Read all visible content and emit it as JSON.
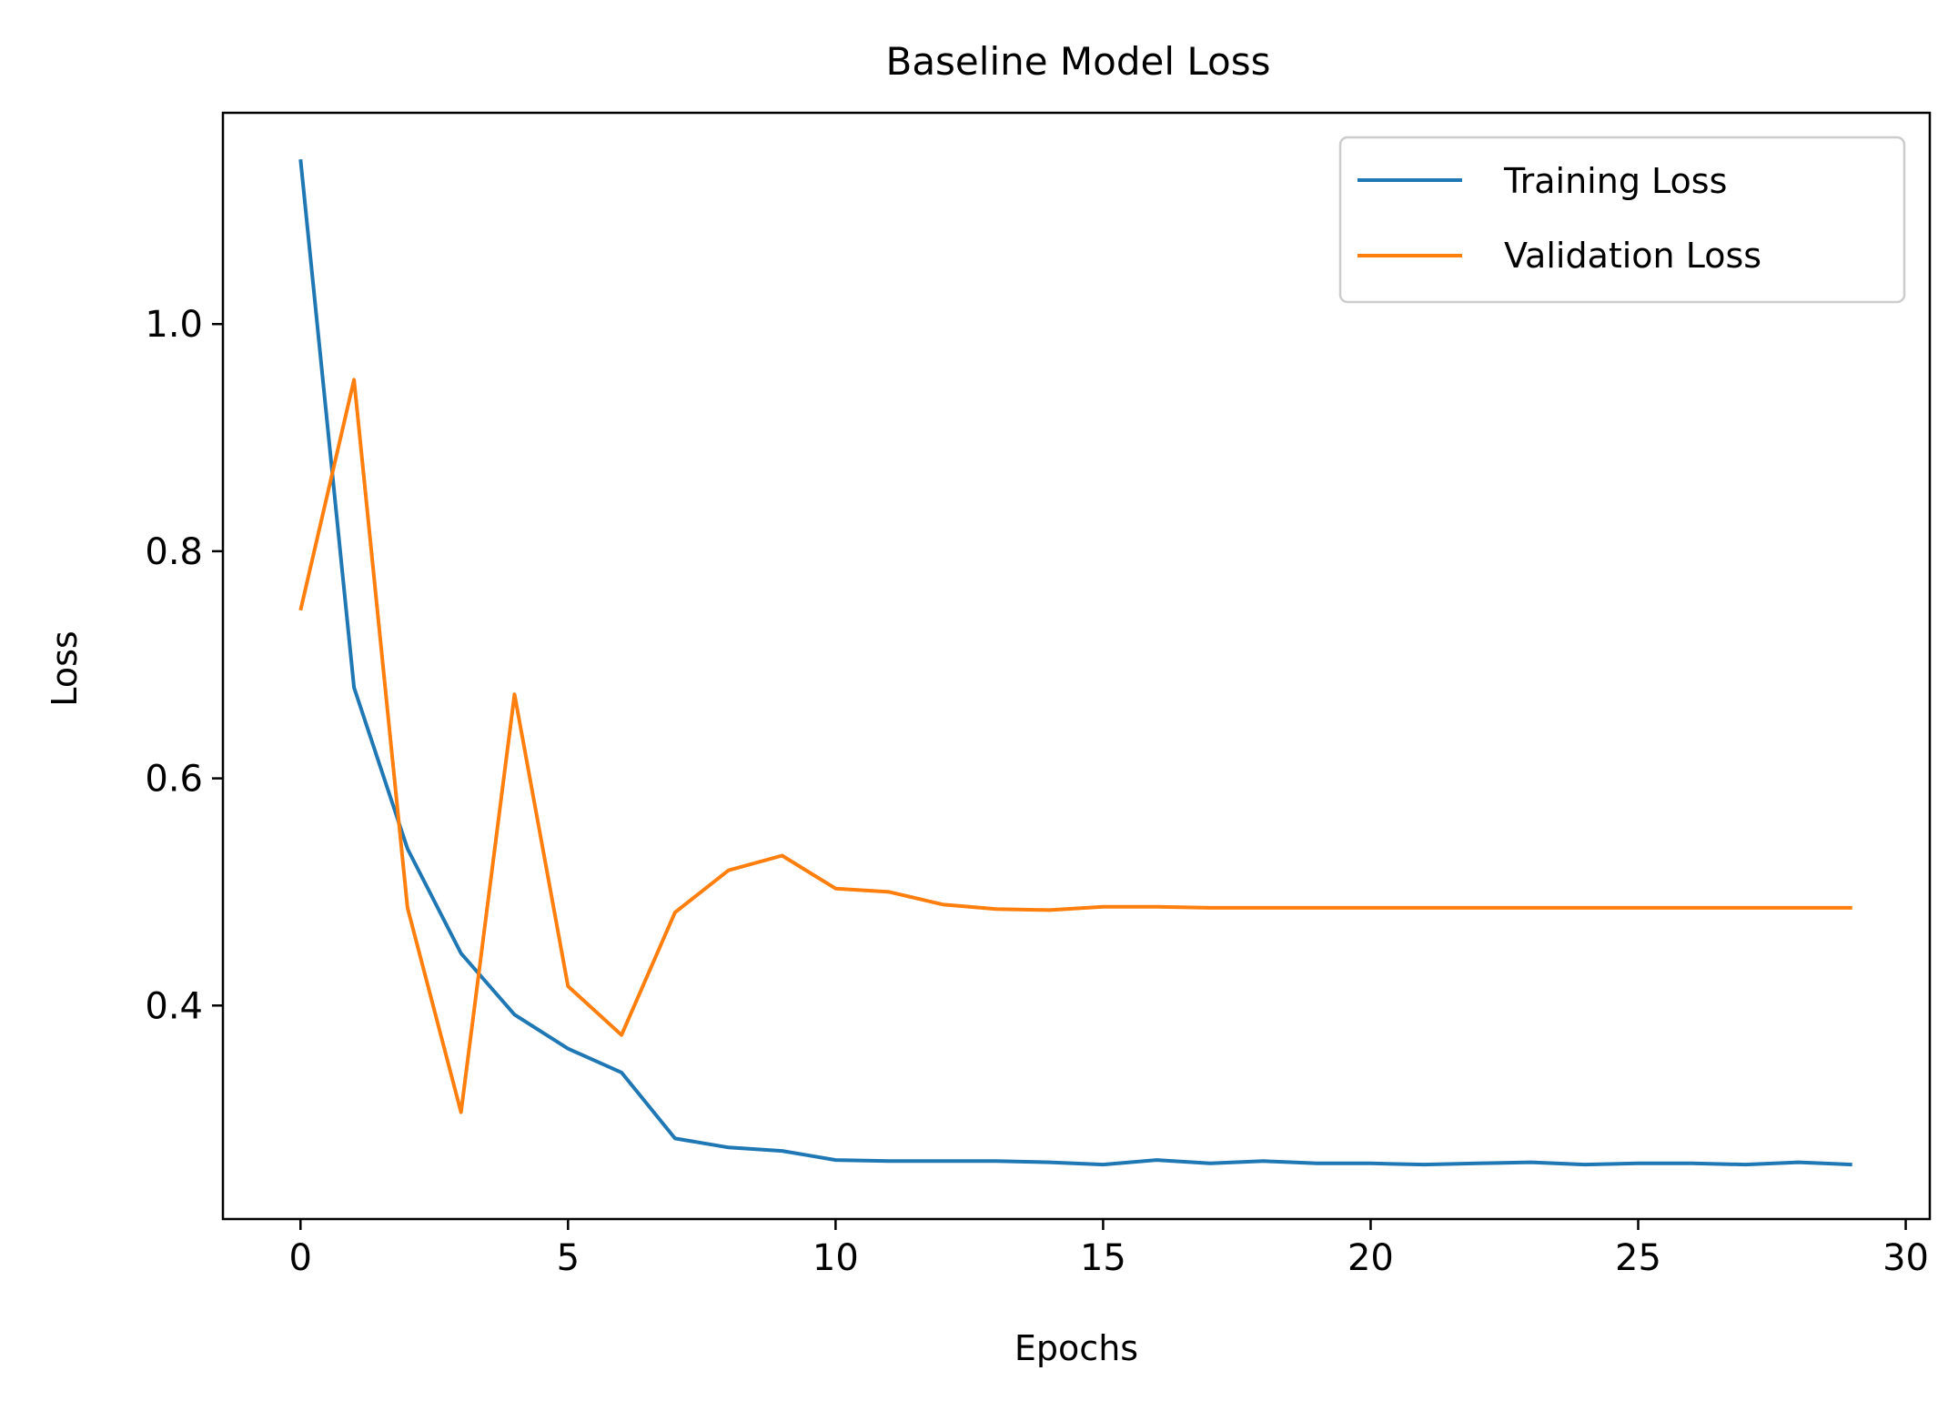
{
  "chart_data": {
    "type": "line",
    "title": "Baseline Model Loss",
    "xlabel": "Epochs",
    "ylabel": "Loss",
    "xlim": [
      -1.45,
      30.45
    ],
    "ylim": [
      0.212,
      1.186
    ],
    "xticks": [
      0,
      5,
      10,
      15,
      20,
      25,
      30
    ],
    "yticks": [
      0.4,
      0.6,
      0.8,
      1.0
    ],
    "xtick_labels": [
      "0",
      "5",
      "10",
      "15",
      "20",
      "25",
      "30"
    ],
    "ytick_labels": [
      "0.4",
      "0.6",
      "0.8",
      "1.0"
    ],
    "grid": false,
    "legend_position": "top-right",
    "x": [
      0,
      1,
      2,
      3,
      4,
      5,
      6,
      7,
      8,
      9,
      10,
      11,
      12,
      13,
      14,
      15,
      16,
      17,
      18,
      19,
      20,
      21,
      22,
      23,
      24,
      25,
      26,
      27,
      28,
      29
    ],
    "series": [
      {
        "name": "Training Loss",
        "color": "#1f77b4",
        "values": [
          1.145,
          0.68,
          0.538,
          0.446,
          0.392,
          0.362,
          0.341,
          0.283,
          0.275,
          0.272,
          0.264,
          0.263,
          0.263,
          0.263,
          0.262,
          0.26,
          0.264,
          0.261,
          0.263,
          0.261,
          0.261,
          0.26,
          0.261,
          0.262,
          0.26,
          0.261,
          0.261,
          0.26,
          0.262,
          0.26
        ]
      },
      {
        "name": "Validation Loss",
        "color": "#ff7f0e",
        "values": [
          0.748,
          0.951,
          0.486,
          0.306,
          0.674,
          0.417,
          0.374,
          0.482,
          0.519,
          0.532,
          0.503,
          0.5,
          0.489,
          0.485,
          0.484,
          0.487,
          0.487,
          0.486,
          0.486,
          0.486,
          0.486,
          0.486,
          0.486,
          0.486,
          0.486,
          0.486,
          0.486,
          0.486,
          0.486,
          0.486
        ]
      }
    ]
  }
}
